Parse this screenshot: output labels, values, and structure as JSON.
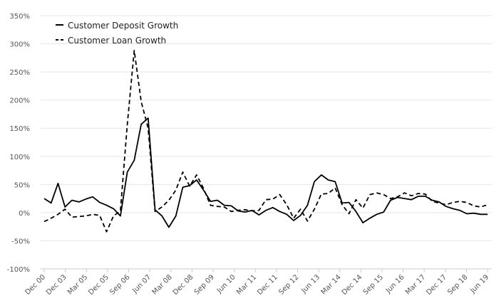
{
  "chart_data": {
    "type": "line",
    "title": "",
    "xlabel": "",
    "ylabel": "",
    "ylim": [
      -100,
      350
    ],
    "yticks": [
      350,
      300,
      250,
      200,
      150,
      100,
      50,
      0,
      -50,
      -100
    ],
    "ytick_labels": [
      "350%",
      "300%",
      "250%",
      "200%",
      "150%",
      "100%",
      "50%",
      "0%",
      "-50%",
      "-100%"
    ],
    "xtick_labels": [
      "Dec 00",
      "Dec 03",
      "Mar 05",
      "Dec 05",
      "Sep 06",
      "Jun 07",
      "Mar 08",
      "Dec 08",
      "Sep 09",
      "Jun 10",
      "Mar 11",
      "Dec 11",
      "Sep 12",
      "Jun 13",
      "Mar 14",
      "Dec 14",
      "Sep 15",
      "Jun 16",
      "Mar 17",
      "Dec 17",
      "Sep 18",
      "Jun 19"
    ],
    "grid": true,
    "legend_position": "top-left",
    "series": [
      {
        "name": "Customer Deposit Growth",
        "style": "solid",
        "color": "#000000",
        "values": [
          25,
          17,
          52,
          10,
          22,
          19,
          24,
          28,
          18,
          13,
          7,
          -6,
          72,
          93,
          157,
          168,
          5,
          -6,
          -26,
          -6,
          45,
          48,
          58,
          40,
          20,
          22,
          13,
          12,
          3,
          1,
          4,
          -4,
          4,
          9,
          2,
          -3,
          -14,
          -5,
          13,
          55,
          67,
          58,
          55,
          17,
          18,
          2,
          -18,
          -10,
          -3,
          1,
          22,
          27,
          25,
          23,
          29,
          29,
          22,
          19,
          11,
          7,
          4,
          -2,
          -1,
          -3,
          -3
        ]
      },
      {
        "name": "Customer Loan Growth",
        "style": "dashed",
        "color": "#000000",
        "values": [
          -16,
          -10,
          -3,
          6,
          -8,
          -7,
          -6,
          -3,
          -5,
          -34,
          -6,
          3,
          157,
          288,
          197,
          150,
          2,
          10,
          22,
          40,
          72,
          47,
          67,
          43,
          13,
          11,
          10,
          2,
          4,
          5,
          3,
          4,
          23,
          24,
          32,
          14,
          -10,
          6,
          -15,
          6,
          33,
          34,
          44,
          14,
          -2,
          23,
          8,
          32,
          35,
          32,
          25,
          28,
          35,
          30,
          34,
          33,
          20,
          17,
          14,
          18,
          20,
          18,
          12,
          10,
          14
        ]
      }
    ]
  }
}
